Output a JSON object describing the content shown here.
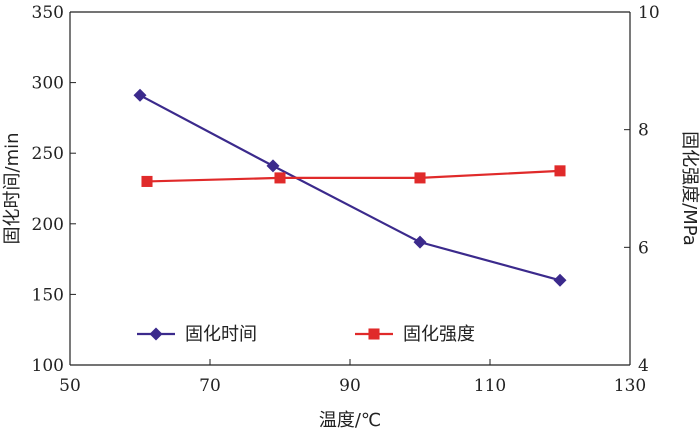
{
  "chart_data": {
    "type": "line",
    "x": [
      60,
      79,
      100,
      120
    ],
    "xlabel": "温度/℃",
    "xlim": [
      50,
      130
    ],
    "xticks": [
      50,
      70,
      90,
      110,
      130
    ],
    "ylabel_left": "固化时间/min",
    "ylim_left": [
      100,
      350
    ],
    "yticks_left": [
      100,
      150,
      200,
      250,
      300,
      350
    ],
    "ylabel_right": "固化强度/MPa",
    "ylim_right": [
      4,
      10
    ],
    "yticks_right": [
      4,
      6,
      8,
      10
    ],
    "grid": false,
    "legend_position": "bottom-center",
    "series": [
      {
        "name": "固化时间",
        "axis": "left",
        "marker": "diamond",
        "color": "#3b2a8c",
        "x": [
          60,
          79,
          100,
          120
        ],
        "values": [
          291,
          241,
          187,
          160
        ]
      },
      {
        "name": "固化强度",
        "axis": "right",
        "marker": "square",
        "color": "#e02a2a",
        "x": [
          61,
          80,
          100,
          120
        ],
        "values": [
          7.12,
          7.18,
          7.18,
          7.3
        ]
      }
    ]
  }
}
